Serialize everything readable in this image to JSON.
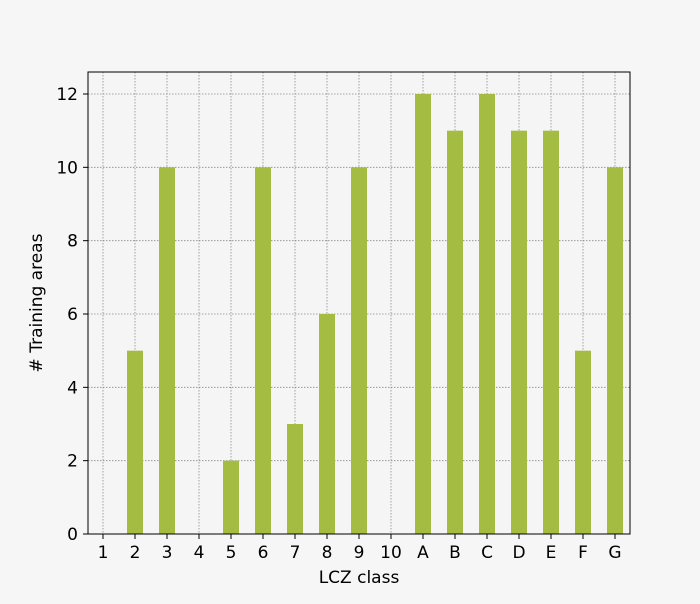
{
  "chart_data": {
    "type": "bar",
    "title": "",
    "xlabel": "LCZ class",
    "ylabel": "# Training areas",
    "categories": [
      "1",
      "2",
      "3",
      "4",
      "5",
      "6",
      "7",
      "8",
      "9",
      "10",
      "A",
      "B",
      "C",
      "D",
      "E",
      "F",
      "G"
    ],
    "values": [
      0,
      5,
      10,
      0,
      2,
      10,
      3,
      6,
      10,
      0,
      12,
      11,
      12,
      11,
      11,
      5,
      10
    ],
    "ylim": [
      0,
      12.6
    ],
    "yticks": [
      0,
      2,
      4,
      6,
      8,
      10,
      12
    ],
    "grid": true,
    "bar_color": "#a4bc42",
    "background": "#f6f6f6",
    "plot_background": "#f5f5f5"
  }
}
